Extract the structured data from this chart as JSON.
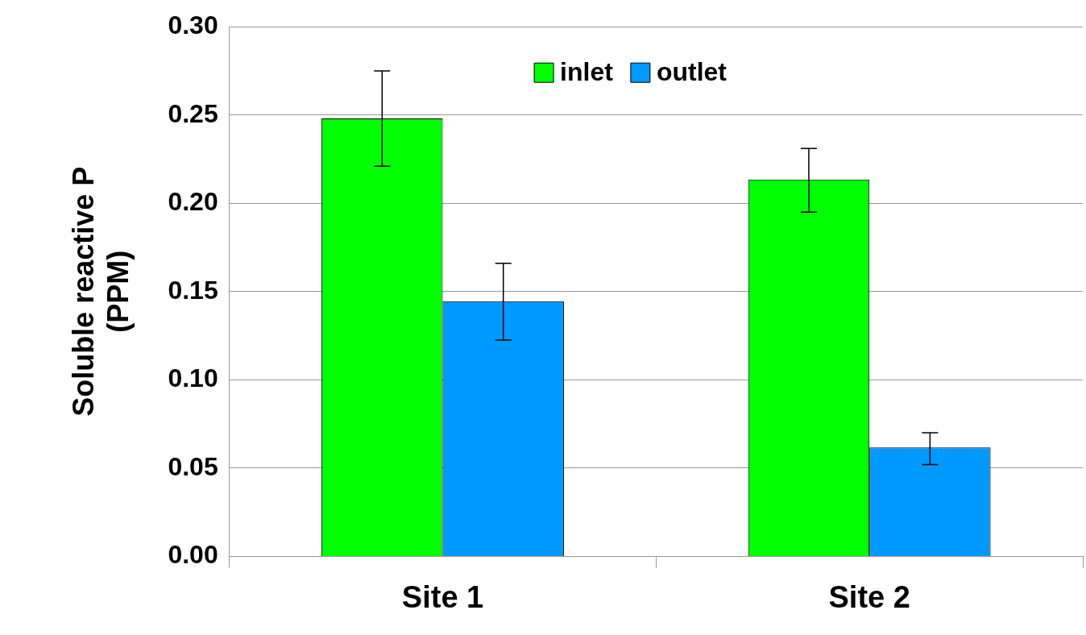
{
  "chart_data": {
    "type": "bar",
    "ylabel": "Soluble reactive P\n(PPM)",
    "categories": [
      "Site 1",
      "Site 2"
    ],
    "series": [
      {
        "name": "inlet",
        "color": "#00ff00",
        "values": [
          0.248,
          0.2135
        ],
        "errors": [
          [
            0.221,
            0.275
          ],
          [
            0.195,
            0.231
          ]
        ]
      },
      {
        "name": "outlet",
        "color": "#0099ff",
        "values": [
          0.1445,
          0.0617
        ],
        "errors": [
          [
            0.1225,
            0.166
          ],
          [
            0.052,
            0.07
          ]
        ]
      }
    ],
    "ylim": [
      0,
      0.3
    ],
    "yticks": [
      {
        "value": 0,
        "label": "0.00"
      },
      {
        "value": 0.05,
        "label": "0.05"
      },
      {
        "value": 0.1,
        "label": "0.10"
      },
      {
        "value": 0.15,
        "label": "0.15"
      },
      {
        "value": 0.2,
        "label": "0.20"
      },
      {
        "value": 0.25,
        "label": "0.25"
      },
      {
        "value": 0.3,
        "label": "0.30"
      }
    ],
    "grid": "y",
    "legend": "top"
  }
}
